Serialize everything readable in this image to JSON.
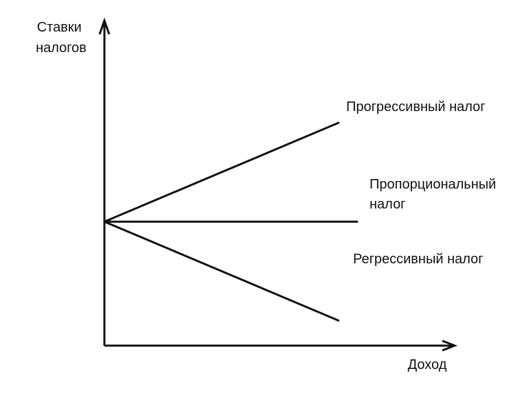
{
  "chart_data": {
    "type": "line",
    "ylabel_lines": [
      "Ставки",
      "налогов"
    ],
    "xlabel": "Доход",
    "series": [
      {
        "name": "Прогрессивный налог",
        "label_lines": [
          "Прогрессивный налог"
        ],
        "x": [
          0,
          1
        ],
        "y": [
          0.5,
          0.9
        ]
      },
      {
        "name": "Пропорциональный налог",
        "label_lines": [
          "Пропорциональный",
          "налог"
        ],
        "x": [
          0,
          1.08
        ],
        "y": [
          0.5,
          0.5
        ]
      },
      {
        "name": "Регрессивный налог",
        "label_lines": [
          "Регрессивный налог"
        ],
        "x": [
          0,
          1
        ],
        "y": [
          0.5,
          0.1
        ]
      }
    ],
    "xlim": [
      0,
      1.48
    ],
    "ylim": [
      0,
      1.3
    ],
    "grid": false,
    "legend": "none",
    "line_color": "#111111"
  }
}
